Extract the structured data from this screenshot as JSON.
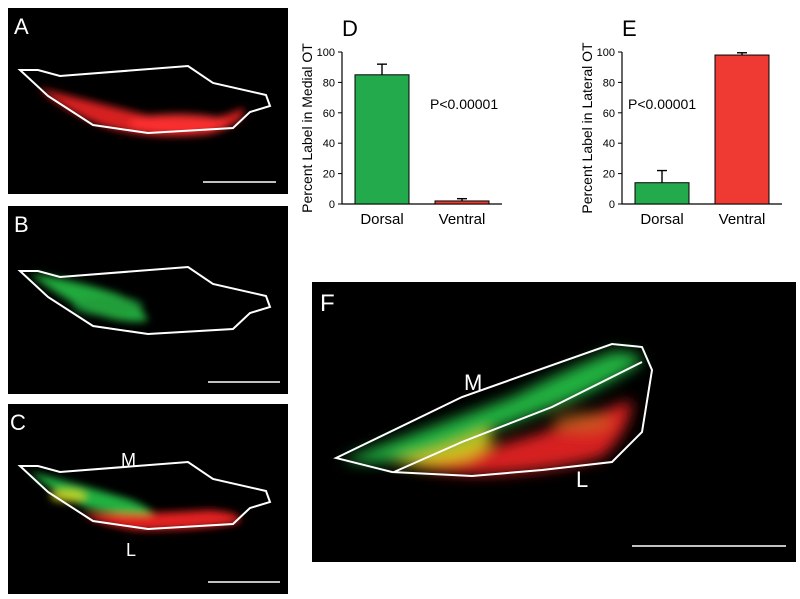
{
  "panels": {
    "A": {
      "label": "A"
    },
    "B": {
      "label": "B"
    },
    "C": {
      "label": "C",
      "medial_label": "M",
      "lateral_label": "L"
    },
    "D": {
      "label": "D"
    },
    "E": {
      "label": "E"
    },
    "F": {
      "label": "F",
      "medial_label": "M",
      "lateral_label": "L"
    }
  },
  "colors": {
    "dorsal": "#22aa4c",
    "ventral": "#ee3a33",
    "axis": "#000000",
    "outline": "#ffffff"
  },
  "chart_data": [
    {
      "panel": "D",
      "type": "bar",
      "categories": [
        "Dorsal",
        "Ventral"
      ],
      "values": [
        85,
        2
      ],
      "errors": [
        7,
        1.5
      ],
      "ylabel": "Percent Label in Medial OT",
      "ylim": [
        0,
        100
      ],
      "yticks": [
        "0",
        "20",
        "40",
        "60",
        "80",
        "100"
      ],
      "annotation": "P<0.00001",
      "annotation_pos": "right"
    },
    {
      "panel": "E",
      "type": "bar",
      "categories": [
        "Dorsal",
        "Ventral"
      ],
      "values": [
        14,
        98
      ],
      "errors": [
        8,
        1.5
      ],
      "ylabel": "Percent Label in Lateral OT",
      "ylim": [
        0,
        100
      ],
      "yticks": [
        "0",
        "20",
        "40",
        "60",
        "80",
        "100"
      ],
      "annotation": "P<0.00001",
      "annotation_pos": "left"
    }
  ]
}
